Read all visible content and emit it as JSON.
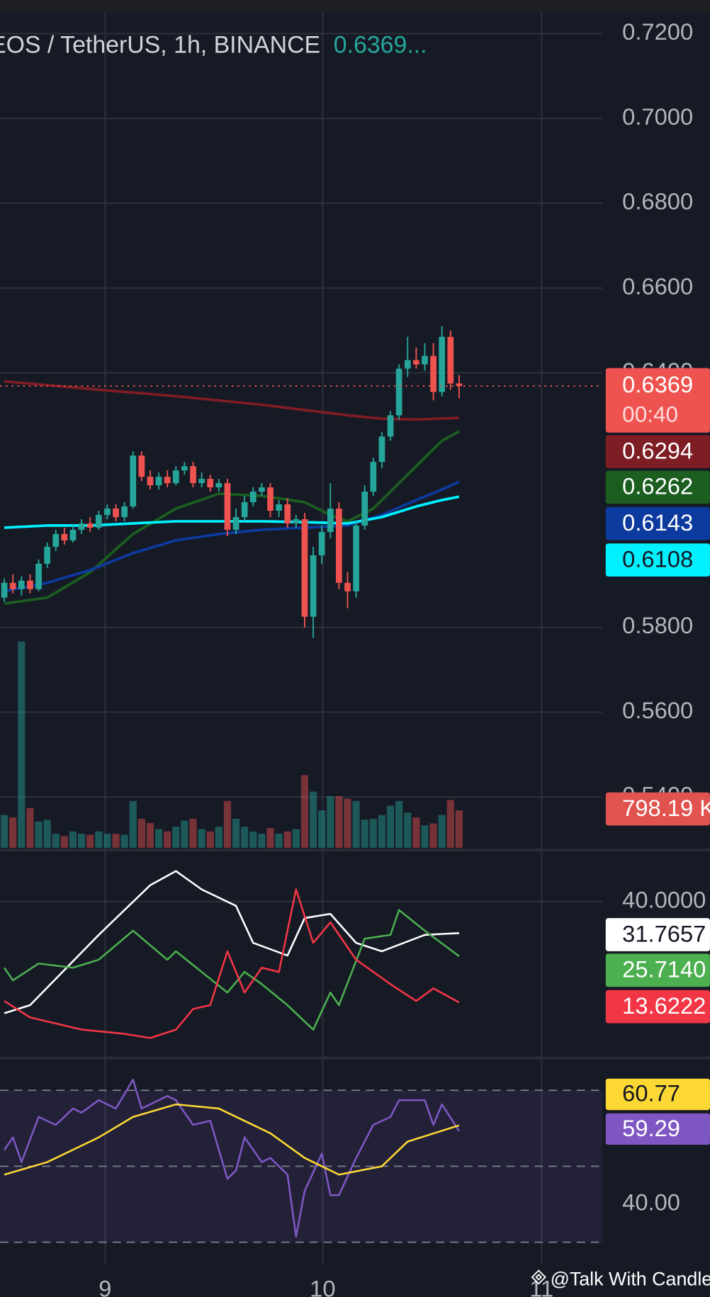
{
  "chart_data": [
    {
      "type": "candlestick",
      "title": "EOS / TetherUS, 1h, BINANCE",
      "title_price": "0.6369...",
      "countdown": "00:40",
      "x": [
        0,
        1,
        2,
        3,
        4,
        5,
        6,
        7,
        8,
        9,
        10,
        11,
        12,
        13,
        14,
        15,
        16,
        17,
        18,
        19,
        20,
        21,
        22,
        23,
        24,
        25,
        26,
        27,
        28,
        29,
        30,
        31,
        32,
        33,
        34,
        35,
        36,
        37,
        38,
        39,
        40,
        41,
        42,
        43,
        44,
        45,
        46,
        47,
        48,
        49,
        50,
        51,
        52,
        53
      ],
      "ohlc": [
        [
          0.587,
          0.5915,
          0.586,
          0.5905
        ],
        [
          0.5905,
          0.5925,
          0.588,
          0.589
        ],
        [
          0.589,
          0.592,
          0.5875,
          0.591
        ],
        [
          0.591,
          0.5925,
          0.588,
          0.589
        ],
        [
          0.589,
          0.596,
          0.5885,
          0.595
        ],
        [
          0.595,
          0.6,
          0.594,
          0.599
        ],
        [
          0.599,
          0.603,
          0.598,
          0.602
        ],
        [
          0.602,
          0.6035,
          0.5995,
          0.6005
        ],
        [
          0.6005,
          0.604,
          0.6,
          0.603
        ],
        [
          0.603,
          0.6055,
          0.602,
          0.6045
        ],
        [
          0.6045,
          0.606,
          0.6025,
          0.6035
        ],
        [
          0.6035,
          0.6075,
          0.603,
          0.6065
        ],
        [
          0.6065,
          0.609,
          0.6055,
          0.608
        ],
        [
          0.608,
          0.609,
          0.605,
          0.606
        ],
        [
          0.606,
          0.6095,
          0.605,
          0.6085
        ],
        [
          0.6085,
          0.6215,
          0.608,
          0.6205
        ],
        [
          0.6205,
          0.6215,
          0.6145,
          0.6155
        ],
        [
          0.6155,
          0.617,
          0.6125,
          0.6135
        ],
        [
          0.6135,
          0.6165,
          0.6125,
          0.6155
        ],
        [
          0.6155,
          0.617,
          0.613,
          0.614
        ],
        [
          0.614,
          0.618,
          0.6135,
          0.617
        ],
        [
          0.617,
          0.619,
          0.616,
          0.618
        ],
        [
          0.618,
          0.619,
          0.613,
          0.614
        ],
        [
          0.614,
          0.6165,
          0.613,
          0.615
        ],
        [
          0.615,
          0.616,
          0.612,
          0.613
        ],
        [
          0.613,
          0.615,
          0.612,
          0.614
        ],
        [
          0.614,
          0.615,
          0.6015,
          0.603
        ],
        [
          0.603,
          0.608,
          0.602,
          0.606
        ],
        [
          0.606,
          0.611,
          0.605,
          0.6095
        ],
        [
          0.6095,
          0.613,
          0.6085,
          0.612
        ],
        [
          0.612,
          0.614,
          0.611,
          0.613
        ],
        [
          0.613,
          0.614,
          0.606,
          0.6075
        ],
        [
          0.6075,
          0.61,
          0.606,
          0.609
        ],
        [
          0.609,
          0.6105,
          0.6035,
          0.6045
        ],
        [
          0.6045,
          0.6065,
          0.6035,
          0.6055
        ],
        [
          0.6055,
          0.607,
          0.58,
          0.5825
        ],
        [
          0.5825,
          0.599,
          0.5775,
          0.597
        ],
        [
          0.597,
          0.604,
          0.595,
          0.6025
        ],
        [
          0.6025,
          0.614,
          0.601,
          0.608
        ],
        [
          0.608,
          0.6095,
          0.589,
          0.5905
        ],
        [
          0.5905,
          0.593,
          0.5845,
          0.5885
        ],
        [
          0.5885,
          0.605,
          0.587,
          0.604
        ],
        [
          0.604,
          0.6135,
          0.603,
          0.612
        ],
        [
          0.612,
          0.62,
          0.611,
          0.619
        ],
        [
          0.619,
          0.626,
          0.6175,
          0.625
        ],
        [
          0.625,
          0.631,
          0.624,
          0.63
        ],
        [
          0.63,
          0.642,
          0.629,
          0.641
        ],
        [
          0.641,
          0.6485,
          0.639,
          0.643
        ],
        [
          0.643,
          0.646,
          0.641,
          0.642
        ],
        [
          0.642,
          0.647,
          0.6405,
          0.644
        ],
        [
          0.644,
          0.647,
          0.6335,
          0.6355
        ],
        [
          0.6355,
          0.651,
          0.6345,
          0.6485
        ],
        [
          0.6485,
          0.65,
          0.636,
          0.6375
        ],
        [
          0.6375,
          0.6395,
          0.634,
          0.6369
        ]
      ],
      "up_color": "#26a69a",
      "down_color": "#ef5350",
      "xlim": [
        -0.5,
        69.7
      ],
      "xticks": [
        {
          "value": 11.75,
          "label": "9"
        },
        {
          "value": 37.1,
          "label": "10"
        },
        {
          "value": 62.6,
          "label": "11"
        }
      ],
      "ylim": [
        0.528,
        0.725
      ],
      "yticks": [
        {
          "value": 0.54,
          "label": "0.5400"
        },
        {
          "value": 0.56,
          "label": "0.5600"
        },
        {
          "value": 0.58,
          "label": "0.5800"
        },
        {
          "value": 0.64,
          "label": "0.6400"
        },
        {
          "value": 0.66,
          "label": "0.6600"
        },
        {
          "value": 0.68,
          "label": "0.6800"
        },
        {
          "value": 0.7,
          "label": "0.7000"
        },
        {
          "value": 0.72,
          "label": "0.7200"
        }
      ],
      "grid": true,
      "moving_averages": [
        {
          "color": "#7f1d25",
          "x": [
            0,
            10,
            20,
            30,
            40,
            44,
            48,
            53
          ],
          "values": [
            0.638,
            0.6362,
            0.6345,
            0.6325,
            0.63,
            0.6292,
            0.629,
            0.6294
          ]
        },
        {
          "color": "#1b5e20",
          "x": [
            0,
            5,
            10,
            15,
            20,
            25,
            30,
            35,
            38,
            40,
            43,
            46,
            49,
            51,
            53
          ],
          "values": [
            0.5856,
            0.587,
            0.593,
            0.602,
            0.608,
            0.6115,
            0.611,
            0.6095,
            0.6065,
            0.605,
            0.608,
            0.614,
            0.62,
            0.624,
            0.6262
          ]
        },
        {
          "color": "#0d3a9e",
          "x": [
            0,
            5,
            10,
            15,
            20,
            25,
            30,
            35,
            40,
            44,
            48,
            51,
            53
          ],
          "values": [
            0.5885,
            0.5905,
            0.5935,
            0.5975,
            0.6005,
            0.602,
            0.603,
            0.6035,
            0.604,
            0.6065,
            0.61,
            0.6125,
            0.6143
          ]
        },
        {
          "color": "#00f0ff",
          "x": [
            0,
            5,
            10,
            15,
            20,
            25,
            30,
            35,
            40,
            44,
            48,
            51,
            53
          ],
          "values": [
            0.6035,
            0.604,
            0.604,
            0.6045,
            0.605,
            0.605,
            0.605,
            0.6048,
            0.6045,
            0.606,
            0.6085,
            0.61,
            0.6108
          ]
        }
      ],
      "volume": {
        "ylim": [
          0,
          4500
        ],
        "values": [
          700,
          650,
          4400,
          850,
          560,
          600,
          300,
          250,
          350,
          300,
          280,
          350,
          300,
          300,
          280,
          1000,
          620,
          530,
          400,
          350,
          450,
          580,
          620,
          400,
          350,
          450,
          1000,
          620,
          450,
          350,
          300,
          420,
          300,
          350,
          400,
          1550,
          1200,
          800,
          1100,
          1100,
          1050,
          1000,
          600,
          620,
          700,
          900,
          1000,
          750,
          650,
          480,
          520,
          700,
          1020,
          798.19
        ],
        "value_label": "798.19 K",
        "label_color": "#e0534f"
      }
    },
    {
      "type": "line",
      "ylim": [
        -0.7,
        53
      ],
      "yticks": [
        {
          "value": 40,
          "label": "40.0000"
        }
      ],
      "series": [
        {
          "color": "#ffffff",
          "x": [
            0,
            3,
            11,
            17,
            20,
            23,
            27,
            29,
            33,
            35,
            38,
            41,
            44,
            49,
            53
          ],
          "values": [
            10.8,
            12.9,
            31.3,
            44.3,
            48.0,
            43.2,
            38.9,
            29.2,
            25.9,
            35.7,
            36.8,
            29.2,
            27.0,
            31.3,
            31.7657
          ]
        },
        {
          "color": "#4caf50",
          "x": [
            0,
            1,
            4,
            8,
            11,
            15,
            19,
            20,
            23,
            26,
            28,
            30,
            33,
            36,
            38,
            39,
            42,
            45,
            46,
            49,
            53
          ],
          "values": [
            22.7,
            19.4,
            23.8,
            22.7,
            24.8,
            32.4,
            24.8,
            27.0,
            21.6,
            16.2,
            21.6,
            18.4,
            12.9,
            6.5,
            16.2,
            12.9,
            30.3,
            31.3,
            37.8,
            32.4,
            25.714
          ],
          "value_labels": [
            null,
            null,
            null,
            null,
            null,
            null,
            null,
            null,
            null,
            null,
            null,
            null,
            null,
            null,
            null,
            null,
            null,
            null,
            null,
            null,
            "25.7140"
          ]
        },
        {
          "color": "#f23645",
          "x": [
            0,
            3,
            9,
            14,
            17,
            20,
            22,
            24,
            26,
            28,
            30,
            32,
            34,
            36,
            38,
            41,
            45,
            48,
            50,
            53
          ],
          "values": [
            14.0,
            9.7,
            6.5,
            5.4,
            4.3,
            6.5,
            11.9,
            12.9,
            27.0,
            16.2,
            22.7,
            21.6,
            43.2,
            29.2,
            34.6,
            24.8,
            18.4,
            14.0,
            17.3,
            13.6222
          ]
        }
      ]
    },
    {
      "type": "line",
      "ylim": [
        24.3,
        78.3
      ],
      "yticks": [
        {
          "value": 40,
          "label": "40.00"
        }
      ],
      "levels": [
        30,
        50,
        70
      ],
      "band_color": "#7e57c2",
      "series": [
        {
          "color": "#7e57c2",
          "x": [
            0,
            1,
            2,
            4,
            6,
            8,
            9,
            11,
            13,
            15,
            16,
            19,
            20,
            22,
            24,
            26,
            27,
            28,
            30,
            31,
            33,
            34,
            35,
            37,
            38,
            39,
            41,
            43,
            45,
            46,
            49,
            50,
            51,
            53
          ],
          "values": [
            54.3,
            57.6,
            51.1,
            63.0,
            60.9,
            65.2,
            64.1,
            67.4,
            65.2,
            72.8,
            65.2,
            68.5,
            67.4,
            60.9,
            62.0,
            46.7,
            48.9,
            57.6,
            51.1,
            52.2,
            47.8,
            31.5,
            43.5,
            53.3,
            42.4,
            42.4,
            52.2,
            60.9,
            63.0,
            67.4,
            67.4,
            60.9,
            66.3,
            59.29
          ]
        },
        {
          "color": "#fdd835",
          "x": [
            0,
            5,
            11,
            15,
            20,
            25,
            31,
            35,
            39,
            44,
            47,
            53
          ],
          "values": [
            47.8,
            51.1,
            57.6,
            63.0,
            66.3,
            65.2,
            58.7,
            52.2,
            47.8,
            50.0,
            56.5,
            60.77
          ]
        }
      ]
    }
  ],
  "watermark": "@Talk With Candle"
}
